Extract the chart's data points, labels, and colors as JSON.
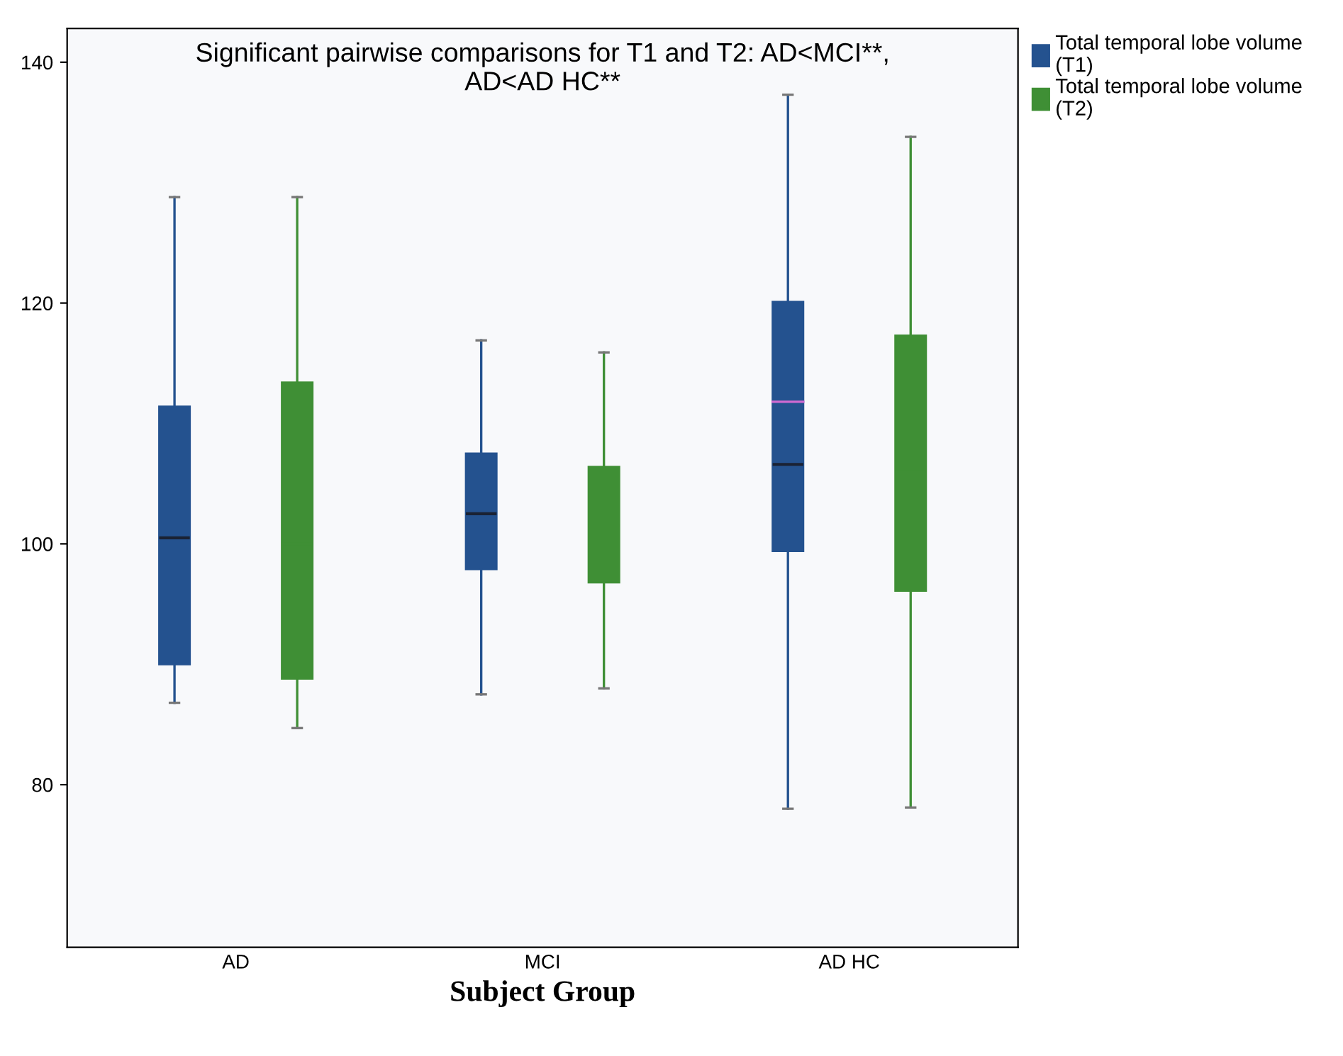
{
  "chart_data": {
    "type": "box",
    "title": "Significant pairwise comparisons for T1 and T2: AD<MCI**,\nAD<AD HC**",
    "xlabel": "Subject Group",
    "categories": [
      "AD",
      "MCI",
      "AD HC"
    ],
    "series": [
      {
        "name": "Total temporal lobe volume\n(T1)",
        "color": "#24528f",
        "boxes": [
          {
            "low": 86.8,
            "q1": 90.0,
            "median": 100.5,
            "q3": 111.4,
            "high": 128.8
          },
          {
            "low": 87.5,
            "q1": 97.9,
            "median": 102.5,
            "q3": 107.5,
            "high": 116.9
          },
          {
            "low": 78.0,
            "q1": 99.4,
            "median": 106.6,
            "q3": 120.1,
            "high": 137.3,
            "mean": 111.8
          }
        ]
      },
      {
        "name": "Total temporal lobe volume\n(T2)",
        "color": "#3f8f35",
        "boxes": [
          {
            "low": 84.7,
            "q1": 88.8,
            "median": 100.0,
            "q3": 113.4,
            "high": 128.8
          },
          {
            "low": 88.0,
            "q1": 96.8,
            "median": 101.5,
            "q3": 106.4,
            "high": 115.9
          },
          {
            "low": 78.1,
            "q1": 96.1,
            "median": 106.0,
            "q3": 117.3,
            "high": 133.8
          }
        ]
      }
    ],
    "ylim": [
      66.5,
      142.8
    ],
    "yticks": [
      80,
      100,
      120,
      140
    ],
    "legend": "top right",
    "grid": false
  }
}
